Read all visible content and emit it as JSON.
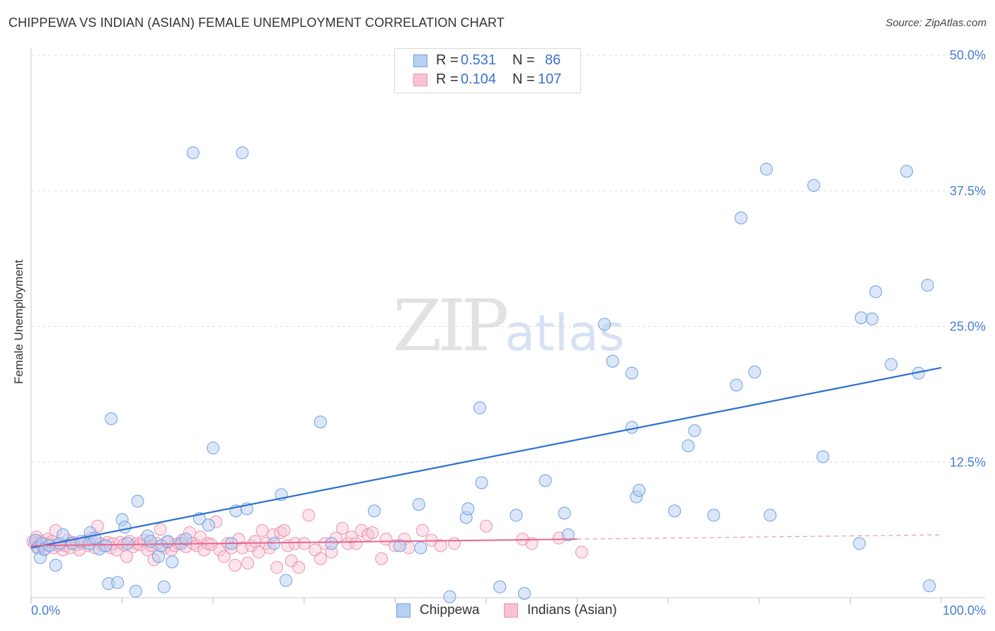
{
  "header": {
    "title": "CHIPPEWA VS INDIAN (ASIAN) FEMALE UNEMPLOYMENT CORRELATION CHART",
    "source": "Source: ZipAtlas.com"
  },
  "watermark": {
    "zip": "ZIP",
    "atlas": "atlas"
  },
  "legend": {
    "rows": [
      {
        "r_label": "R =",
        "r_value": "0.531",
        "n_label": "N =",
        "n_value": "86"
      },
      {
        "r_label": "R =",
        "r_value": "0.104",
        "n_label": "N =",
        "n_value": "107"
      }
    ]
  },
  "bottom_legend": {
    "items": [
      "Chippewa",
      "Indians (Asian)"
    ]
  },
  "colors": {
    "chippewa_fill": "#b7cff2",
    "chippewa_stroke": "#6f9fe0",
    "chippewa_line": "#2d6fd0",
    "indian_fill": "#f7c3d3",
    "indian_stroke": "#ec93b0",
    "indian_line": "#e8668f",
    "grid": "#dddddd",
    "axis_text": "#4a7fd4"
  },
  "chart_data": {
    "type": "scatter",
    "title": "CHIPPEWA VS INDIAN (ASIAN) FEMALE UNEMPLOYMENT CORRELATION CHART",
    "xlabel": "",
    "ylabel": "Female Unemployment",
    "xlim": [
      0,
      100
    ],
    "ylim": [
      0,
      50
    ],
    "x_tick_labels": [
      "0.0%",
      "100.0%"
    ],
    "y_ticks": [
      12.5,
      25.0,
      37.5,
      50.0
    ],
    "y_tick_labels": [
      "12.5%",
      "25.0%",
      "37.5%",
      "50.0%"
    ],
    "series": [
      {
        "name": "Chippewa",
        "R": 0.531,
        "N": 86,
        "trend": {
          "x": [
            0,
            100
          ],
          "y": [
            4.6,
            21.2
          ],
          "style": "solid"
        },
        "points": [
          [
            0.5,
            5.3
          ],
          [
            0.7,
            4.6
          ],
          [
            1.0,
            3.7
          ],
          [
            1.2,
            5.0
          ],
          [
            1.5,
            4.5
          ],
          [
            2.0,
            4.8
          ],
          [
            2.7,
            3.0
          ],
          [
            3.1,
            5.0
          ],
          [
            3.5,
            5.8
          ],
          [
            4.5,
            5.0
          ],
          [
            5.5,
            5.2
          ],
          [
            6.4,
            5.0
          ],
          [
            6.5,
            6.0
          ],
          [
            7.0,
            5.5
          ],
          [
            7.5,
            4.5
          ],
          [
            8.2,
            4.8
          ],
          [
            8.5,
            1.3
          ],
          [
            8.8,
            16.5
          ],
          [
            9.5,
            1.4
          ],
          [
            10.0,
            7.2
          ],
          [
            10.3,
            6.5
          ],
          [
            10.6,
            5.0
          ],
          [
            11.7,
            8.9
          ],
          [
            11.5,
            0.6
          ],
          [
            12.8,
            5.7
          ],
          [
            13.1,
            5.2
          ],
          [
            14.0,
            3.8
          ],
          [
            14.3,
            4.8
          ],
          [
            14.6,
            1.0
          ],
          [
            15.5,
            3.3
          ],
          [
            15.0,
            5.2
          ],
          [
            16.5,
            5.0
          ],
          [
            17.0,
            5.4
          ],
          [
            17.8,
            41.0
          ],
          [
            18.5,
            7.3
          ],
          [
            19.5,
            6.7
          ],
          [
            20.0,
            13.8
          ],
          [
            22.5,
            8.0
          ],
          [
            22.0,
            5.0
          ],
          [
            23.2,
            41.0
          ],
          [
            23.7,
            8.2
          ],
          [
            26.7,
            5.0
          ],
          [
            27.5,
            9.5
          ],
          [
            28.0,
            1.6
          ],
          [
            31.8,
            16.2
          ],
          [
            33.0,
            5.0
          ],
          [
            37.7,
            8.0
          ],
          [
            40.5,
            4.8
          ],
          [
            42.6,
            8.6
          ],
          [
            42.8,
            4.6
          ],
          [
            46.0,
            0.1
          ],
          [
            47.8,
            7.4
          ],
          [
            48.0,
            8.2
          ],
          [
            49.5,
            10.6
          ],
          [
            49.3,
            17.5
          ],
          [
            51.5,
            1.0
          ],
          [
            53.3,
            7.6
          ],
          [
            54.2,
            0.4
          ],
          [
            56.5,
            10.8
          ],
          [
            58.6,
            7.8
          ],
          [
            63.0,
            25.2
          ],
          [
            63.9,
            21.8
          ],
          [
            66.0,
            15.7
          ],
          [
            66.5,
            9.3
          ],
          [
            66.8,
            9.9
          ],
          [
            70.7,
            8.0
          ],
          [
            72.2,
            14.0
          ],
          [
            72.9,
            15.4
          ],
          [
            75.0,
            7.6
          ],
          [
            77.5,
            19.6
          ],
          [
            78.0,
            35.0
          ],
          [
            79.5,
            20.8
          ],
          [
            80.8,
            39.5
          ],
          [
            81.2,
            7.6
          ],
          [
            86.0,
            38.0
          ],
          [
            87.0,
            13.0
          ],
          [
            91.0,
            5.0
          ],
          [
            91.2,
            25.8
          ],
          [
            92.4,
            25.7
          ],
          [
            92.8,
            28.2
          ],
          [
            94.5,
            21.5
          ],
          [
            96.2,
            39.3
          ],
          [
            97.5,
            20.7
          ],
          [
            98.5,
            28.8
          ],
          [
            98.7,
            1.1
          ],
          [
            59.0,
            5.8
          ],
          [
            66.0,
            20.7
          ]
        ]
      },
      {
        "name": "Indians (Asian)",
        "R": 0.104,
        "N": 107,
        "trend": {
          "x": [
            0,
            60
          ],
          "y": [
            4.8,
            5.4
          ],
          "style": "solid",
          "extension": {
            "x": [
              60,
              100
            ],
            "y": [
              5.4,
              5.8
            ],
            "style": "dashed"
          }
        },
        "points": [
          [
            0.2,
            5.2
          ],
          [
            0.4,
            5.0
          ],
          [
            0.6,
            5.6
          ],
          [
            0.8,
            4.6
          ],
          [
            1.0,
            5.2
          ],
          [
            1.2,
            4.8
          ],
          [
            1.4,
            4.4
          ],
          [
            1.6,
            5.0
          ],
          [
            1.8,
            5.4
          ],
          [
            2.0,
            4.9
          ],
          [
            2.3,
            5.2
          ],
          [
            2.5,
            4.6
          ],
          [
            2.7,
            6.2
          ],
          [
            3.0,
            4.8
          ],
          [
            3.2,
            5.0
          ],
          [
            3.5,
            4.4
          ],
          [
            3.8,
            4.8
          ],
          [
            4.0,
            5.3
          ],
          [
            4.3,
            4.6
          ],
          [
            4.6,
            5.1
          ],
          [
            5.0,
            4.9
          ],
          [
            5.3,
            4.4
          ],
          [
            5.6,
            5.0
          ],
          [
            6.0,
            5.2
          ],
          [
            6.3,
            4.8
          ],
          [
            6.6,
            5.5
          ],
          [
            7.0,
            4.6
          ],
          [
            7.3,
            6.6
          ],
          [
            7.6,
            5.0
          ],
          [
            8.0,
            4.8
          ],
          [
            8.4,
            5.1
          ],
          [
            8.7,
            4.6
          ],
          [
            9.0,
            5.0
          ],
          [
            9.4,
            4.4
          ],
          [
            9.8,
            5.1
          ],
          [
            10.2,
            4.9
          ],
          [
            10.5,
            3.8
          ],
          [
            10.8,
            5.2
          ],
          [
            11.2,
            4.7
          ],
          [
            11.6,
            5.0
          ],
          [
            12.0,
            4.9
          ],
          [
            12.4,
            5.3
          ],
          [
            12.8,
            4.4
          ],
          [
            13.2,
            4.8
          ],
          [
            13.5,
            3.5
          ],
          [
            13.8,
            5.0
          ],
          [
            14.2,
            6.3
          ],
          [
            14.6,
            4.6
          ],
          [
            15.0,
            5.1
          ],
          [
            15.4,
            4.4
          ],
          [
            15.8,
            4.8
          ],
          [
            16.2,
            5.0
          ],
          [
            16.6,
            5.3
          ],
          [
            17.0,
            4.7
          ],
          [
            17.4,
            6.0
          ],
          [
            17.8,
            5.0
          ],
          [
            18.2,
            4.8
          ],
          [
            18.6,
            5.6
          ],
          [
            19.0,
            4.4
          ],
          [
            19.4,
            5.0
          ],
          [
            19.8,
            4.9
          ],
          [
            20.3,
            7.0
          ],
          [
            20.7,
            4.4
          ],
          [
            21.2,
            3.8
          ],
          [
            21.6,
            5.0
          ],
          [
            22.0,
            4.6
          ],
          [
            22.4,
            3.0
          ],
          [
            22.8,
            5.4
          ],
          [
            23.2,
            4.6
          ],
          [
            23.8,
            3.2
          ],
          [
            24.2,
            4.8
          ],
          [
            24.6,
            5.2
          ],
          [
            25.0,
            4.2
          ],
          [
            25.4,
            6.2
          ],
          [
            25.8,
            5.0
          ],
          [
            26.2,
            4.6
          ],
          [
            26.6,
            5.8
          ],
          [
            27.0,
            2.8
          ],
          [
            27.4,
            6.0
          ],
          [
            27.8,
            6.2
          ],
          [
            28.2,
            4.8
          ],
          [
            28.6,
            3.4
          ],
          [
            29.0,
            5.0
          ],
          [
            29.4,
            2.8
          ],
          [
            30.0,
            5.0
          ],
          [
            30.5,
            7.6
          ],
          [
            31.2,
            4.4
          ],
          [
            31.8,
            3.6
          ],
          [
            32.3,
            5.0
          ],
          [
            33.0,
            4.2
          ],
          [
            33.5,
            5.5
          ],
          [
            34.2,
            6.4
          ],
          [
            34.8,
            5.0
          ],
          [
            35.2,
            5.6
          ],
          [
            35.7,
            5.0
          ],
          [
            36.3,
            6.2
          ],
          [
            37.0,
            5.8
          ],
          [
            37.5,
            6.0
          ],
          [
            38.5,
            3.6
          ],
          [
            39.0,
            5.4
          ],
          [
            40.0,
            4.8
          ],
          [
            41.0,
            5.4
          ],
          [
            41.5,
            4.6
          ],
          [
            43.0,
            6.2
          ],
          [
            44.0,
            5.3
          ],
          [
            45.0,
            4.8
          ],
          [
            46.5,
            5.0
          ],
          [
            50.0,
            6.6
          ],
          [
            55.0,
            5.0
          ],
          [
            54.0,
            5.4
          ],
          [
            60.5,
            4.2
          ],
          [
            58.0,
            5.5
          ]
        ]
      }
    ]
  }
}
